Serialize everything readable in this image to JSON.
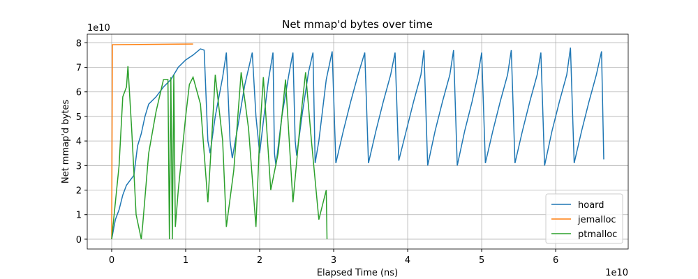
{
  "chart_data": {
    "type": "line",
    "title": "Net mmap'd bytes over time",
    "xlabel": "Elapsed Time (ns)",
    "ylabel": "Net mmap'd bytes",
    "x_offset_label": "1e10",
    "y_offset_label": "1e10",
    "xlim": [
      -0.33,
      6.98
    ],
    "ylim": [
      -0.4,
      8.35
    ],
    "xticks": [
      0,
      1,
      2,
      3,
      4,
      5,
      6
    ],
    "yticks": [
      0,
      1,
      2,
      3,
      4,
      5,
      6,
      7,
      8
    ],
    "grid": true,
    "legend": "lower right",
    "series": [
      {
        "name": "hoard",
        "color": "#1f77b4",
        "x": [
          0,
          0.05,
          0.1,
          0.15,
          0.2,
          0.3,
          0.35,
          0.4,
          0.45,
          0.5,
          0.6,
          0.7,
          0.8,
          0.9,
          1.0,
          1.1,
          1.2,
          1.25,
          1.3,
          1.33,
          1.4,
          1.5,
          1.55,
          1.6,
          1.63,
          1.7,
          1.8,
          1.9,
          1.95,
          2.0,
          2.05,
          2.12,
          2.18,
          2.2,
          2.22,
          2.3,
          2.4,
          2.45,
          2.48,
          2.5,
          2.58,
          2.66,
          2.72,
          2.75,
          2.8,
          2.9,
          2.98,
          3.03,
          3.13,
          3.23,
          3.33,
          3.42,
          3.47,
          3.57,
          3.67,
          3.77,
          3.83,
          3.88,
          3.98,
          4.08,
          4.18,
          4.22,
          4.27,
          4.37,
          4.47,
          4.57,
          4.62,
          4.67,
          4.77,
          4.87,
          4.95,
          5.0,
          5.05,
          5.15,
          5.25,
          5.35,
          5.4,
          5.45,
          5.55,
          5.65,
          5.75,
          5.8,
          5.85,
          5.95,
          6.05,
          6.15,
          6.2,
          6.25,
          6.35,
          6.45,
          6.55,
          6.62,
          6.65
        ],
        "values": [
          0,
          0.8,
          1.2,
          1.8,
          2.2,
          2.6,
          3.8,
          4.3,
          5.0,
          5.5,
          5.8,
          6.2,
          6.5,
          7.0,
          7.3,
          7.5,
          7.75,
          7.7,
          4.0,
          3.5,
          5.0,
          6.6,
          7.6,
          4.0,
          3.3,
          4.5,
          6.3,
          7.6,
          5.0,
          3.5,
          4.8,
          6.5,
          7.6,
          3.5,
          3.0,
          5.0,
          6.8,
          7.6,
          4.0,
          3.4,
          5.2,
          6.8,
          7.6,
          3.1,
          4.0,
          6.5,
          7.65,
          3.1,
          4.4,
          5.6,
          6.7,
          7.6,
          3.1,
          4.4,
          5.6,
          6.7,
          7.6,
          3.2,
          4.4,
          5.6,
          6.7,
          7.7,
          3.0,
          4.4,
          5.6,
          6.7,
          7.7,
          3.0,
          4.4,
          5.6,
          6.7,
          7.6,
          3.1,
          4.4,
          5.6,
          6.7,
          7.7,
          3.1,
          4.4,
          5.6,
          6.7,
          7.6,
          3.0,
          4.4,
          5.6,
          6.7,
          7.8,
          3.1,
          4.4,
          5.6,
          6.7,
          7.65,
          3.25
        ]
      },
      {
        "name": "jemalloc",
        "color": "#ff7f0e",
        "x": [
          0,
          0.01,
          1.1
        ],
        "values": [
          0,
          7.92,
          7.95
        ]
      },
      {
        "name": "ptmalloc",
        "color": "#2ca02c",
        "x": [
          0,
          0.05,
          0.1,
          0.15,
          0.2,
          0.22,
          0.27,
          0.33,
          0.4,
          0.42,
          0.5,
          0.6,
          0.7,
          0.76,
          0.78,
          0.8,
          0.82,
          0.84,
          0.86,
          0.9,
          1.0,
          1.05,
          1.1,
          1.2,
          1.25,
          1.3,
          1.35,
          1.4,
          1.5,
          1.55,
          1.65,
          1.75,
          1.85,
          1.95,
          2.0,
          2.05,
          2.15,
          2.25,
          2.35,
          2.45,
          2.55,
          2.62,
          2.7,
          2.8,
          2.9,
          2.91
        ],
        "values": [
          0,
          1.5,
          3.0,
          5.8,
          6.2,
          7.05,
          4.5,
          1.0,
          0.0,
          0.6,
          3.5,
          5.2,
          6.5,
          6.5,
          0.0,
          6.6,
          0.0,
          6.7,
          0.5,
          2.0,
          5.0,
          6.3,
          6.6,
          5.5,
          3.5,
          1.5,
          4.0,
          6.7,
          4.0,
          0.5,
          2.8,
          6.8,
          4.5,
          0.5,
          4.2,
          6.6,
          2.0,
          3.5,
          6.5,
          1.5,
          4.8,
          6.8,
          4.0,
          0.8,
          2.0,
          0.0
        ]
      }
    ]
  }
}
